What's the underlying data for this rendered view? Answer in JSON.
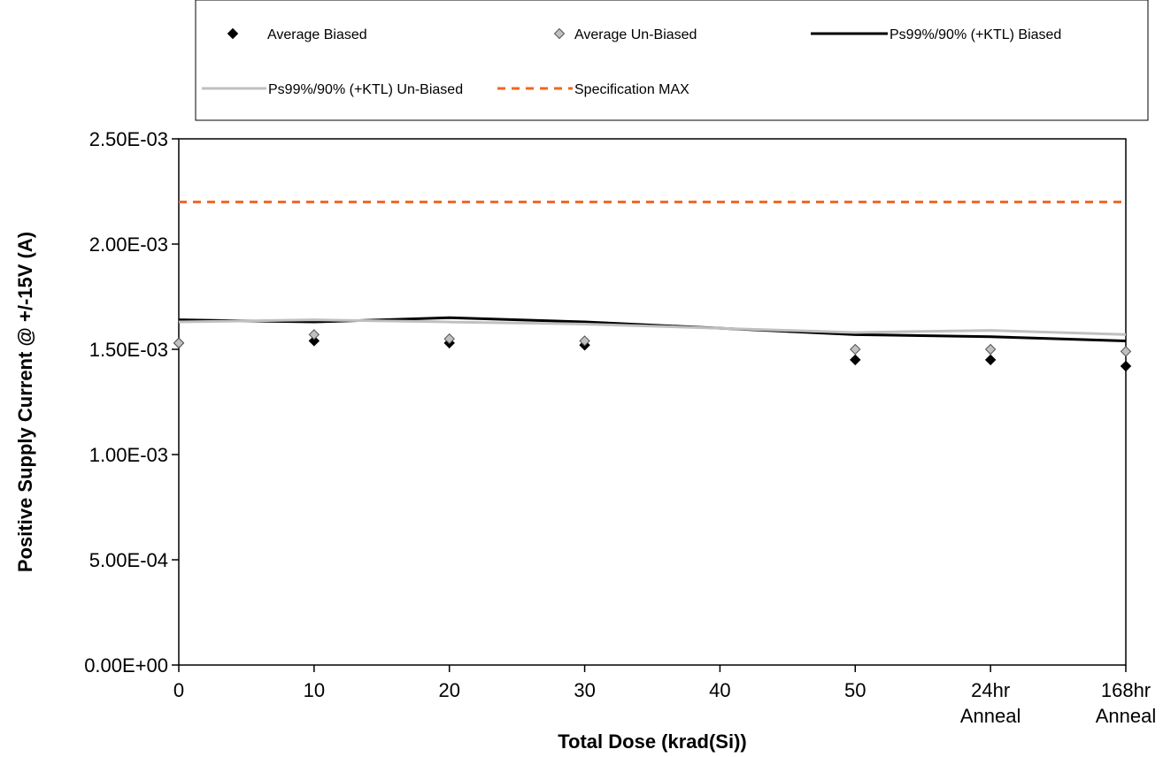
{
  "chart_data": {
    "type": "line",
    "title": "",
    "xlabel": "Total Dose (krad(Si))",
    "ylabel": "Positive Supply Current @ +/-15V (A)",
    "ylim": [
      0,
      0.0025
    ],
    "y_ticks": [
      0,
      0.0005,
      0.001,
      0.0015,
      0.002,
      0.0025
    ],
    "y_tick_labels": [
      "0.00E+00",
      "5.00E-04",
      "1.00E-03",
      "1.50E-03",
      "2.00E-03",
      "2.50E-03"
    ],
    "x": [
      0,
      10,
      20,
      30,
      40,
      50,
      60,
      70
    ],
    "x_tick_labels": [
      [
        "0"
      ],
      [
        "10"
      ],
      [
        "20"
      ],
      [
        "30"
      ],
      [
        "40"
      ],
      [
        "50"
      ],
      [
        "24hr",
        "Anneal"
      ],
      [
        "168hr",
        "Anneal"
      ]
    ],
    "grid": false,
    "legend_position": "top",
    "series": [
      {
        "name": "Average Biased",
        "kind": "marker",
        "marker": "diamond",
        "color": "#000000",
        "x": [
          0,
          10,
          20,
          30,
          50,
          60,
          70
        ],
        "values": [
          0.00153,
          0.00154,
          0.00153,
          0.00152,
          0.00145,
          0.00145,
          0.00142
        ]
      },
      {
        "name": "Average Un-Biased",
        "kind": "marker",
        "marker": "diamond",
        "color": "#c0c0c0",
        "x": [
          0,
          10,
          20,
          30,
          50,
          60,
          70
        ],
        "values": [
          0.00153,
          0.00157,
          0.00155,
          0.00154,
          0.0015,
          0.0015,
          0.00149
        ]
      },
      {
        "name": "Ps99%/90% (+KTL) Biased",
        "kind": "line",
        "color": "#000000",
        "x": [
          0,
          10,
          20,
          30,
          50,
          60,
          70
        ],
        "values": [
          0.00164,
          0.00163,
          0.00165,
          0.00163,
          0.00157,
          0.00156,
          0.00154
        ]
      },
      {
        "name": "Ps99%/90% (+KTL) Un-Biased",
        "kind": "line",
        "color": "#c0c0c0",
        "x": [
          0,
          10,
          20,
          30,
          50,
          60,
          70
        ],
        "values": [
          0.00163,
          0.00164,
          0.00163,
          0.00162,
          0.00158,
          0.00159,
          0.00157
        ]
      },
      {
        "name": "Specification MAX",
        "kind": "dashed",
        "color": "#f26522",
        "x": [
          0,
          70
        ],
        "values": [
          0.0022,
          0.0022
        ]
      }
    ]
  }
}
